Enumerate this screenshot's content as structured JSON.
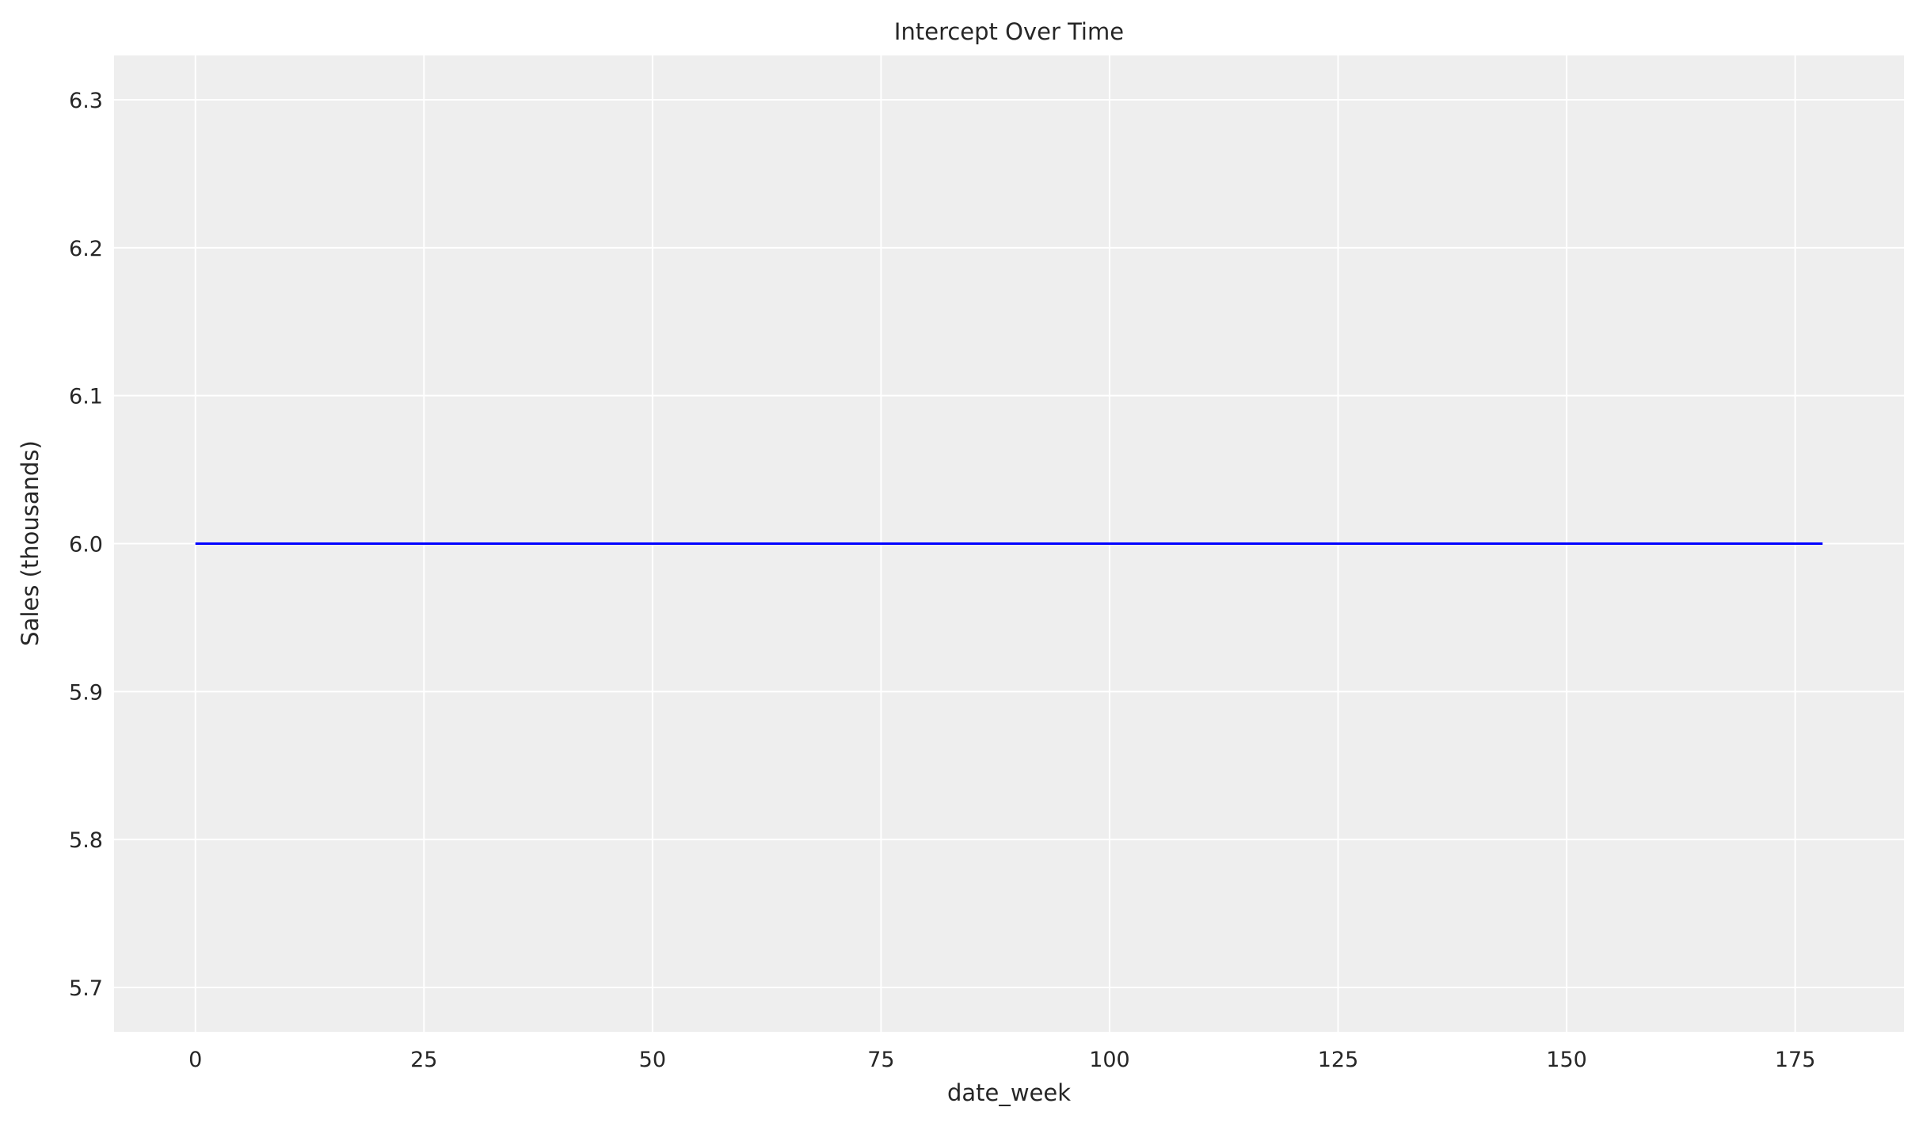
{
  "chart_data": {
    "type": "line",
    "title": "Intercept Over Time",
    "xlabel": "date_week",
    "ylabel": "Sales (thousands)",
    "xlim": [
      -8.9,
      186.9
    ],
    "ylim": [
      5.67,
      6.33
    ],
    "xticks": [
      0,
      25,
      50,
      75,
      100,
      125,
      150,
      175
    ],
    "xtick_labels": [
      "0",
      "25",
      "50",
      "75",
      "100",
      "125",
      "150",
      "175"
    ],
    "yticks": [
      5.7,
      5.8,
      5.9,
      6.0,
      6.1,
      6.2,
      6.3
    ],
    "ytick_labels": [
      "5.7",
      "5.8",
      "5.9",
      "6.0",
      "6.1",
      "6.2",
      "6.3"
    ],
    "grid": true,
    "background": "#eeeeee",
    "series": [
      {
        "color": "#0000ff",
        "x_range": [
          0,
          178
        ],
        "y": [
          6.0,
          6.0,
          6.0,
          6.0,
          6.0,
          6.0,
          6.0,
          6.0,
          6.0,
          6.0,
          6.0,
          6.0,
          6.0,
          6.0,
          6.0,
          6.0,
          6.0,
          6.0,
          6.0,
          6.0,
          6.0,
          6.0,
          6.0,
          6.0,
          6.0,
          6.0,
          6.0,
          6.0,
          6.0,
          6.0,
          6.0,
          6.0,
          6.0,
          6.0,
          6.0,
          6.0,
          6.0,
          6.0,
          6.0,
          6.0,
          6.0,
          6.0,
          6.0,
          6.0,
          6.0,
          6.0,
          6.0,
          6.0,
          6.0,
          6.0,
          6.0,
          6.0,
          6.0,
          6.0,
          6.0,
          6.0,
          6.0,
          6.0,
          6.0,
          6.0,
          6.0,
          6.0,
          6.0,
          6.0,
          6.0,
          6.0,
          6.0,
          6.0,
          6.0,
          6.0,
          6.0,
          6.0,
          6.0,
          6.0,
          6.0,
          6.0,
          6.0,
          6.0,
          6.0,
          6.0,
          6.0,
          6.0,
          6.0,
          6.0,
          6.0,
          6.0,
          6.0,
          6.0,
          6.0,
          6.0,
          6.0,
          6.0,
          6.0,
          6.0,
          6.0,
          6.0,
          6.0,
          6.0,
          6.0,
          6.0,
          6.0,
          6.0,
          6.0,
          6.0,
          6.0,
          6.0,
          6.0,
          6.0,
          6.0,
          6.0,
          6.0,
          6.0,
          6.0,
          6.0,
          6.0,
          6.0,
          6.0,
          6.0,
          6.0,
          6.0,
          6.0,
          6.0,
          6.0,
          6.0,
          6.0,
          6.0,
          6.0,
          6.0,
          6.0,
          6.0,
          6.0,
          6.0,
          6.0,
          6.0,
          6.0,
          6.0,
          6.0,
          6.0,
          6.0,
          6.0,
          6.0,
          6.0,
          6.0,
          6.0,
          6.0,
          6.0,
          6.0,
          6.0,
          6.0,
          6.0,
          6.0,
          6.0,
          6.0,
          6.0,
          6.0,
          6.0,
          6.0,
          6.0,
          6.0,
          6.0,
          6.0,
          6.0,
          6.0,
          6.0,
          6.0,
          6.0,
          6.0,
          6.0,
          6.0,
          6.0,
          6.0,
          6.0,
          6.0,
          6.0,
          6.0,
          6.0,
          6.0,
          6.0,
          6.0
        ]
      }
    ]
  }
}
